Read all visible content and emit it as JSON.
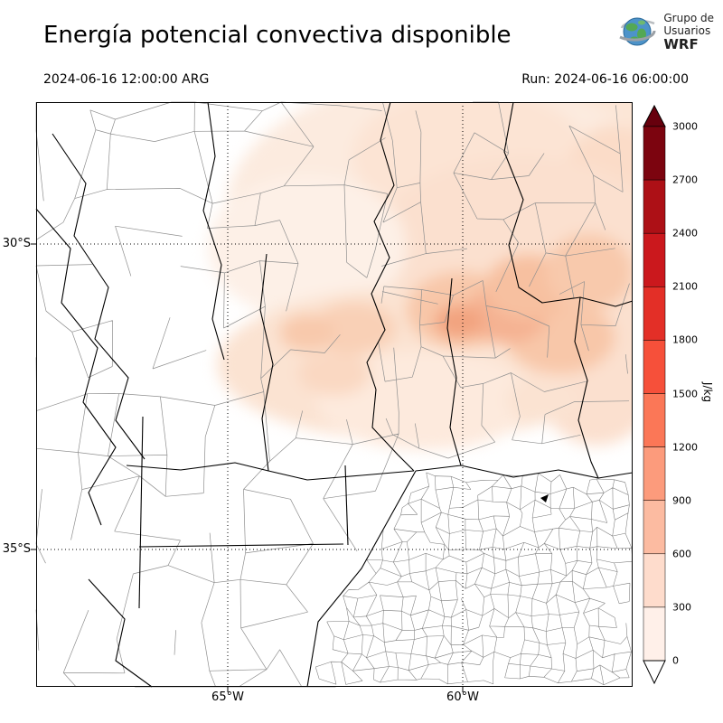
{
  "header": {
    "title": "Energía potencial convectiva disponible",
    "logo": {
      "line1": "Grupo de",
      "line2": "Usuarios",
      "line3": "WRF"
    }
  },
  "subheader": {
    "valid_time": "2024-06-16 12:00:00 ARG",
    "run_label": "Run: 2024-06-16 06:00:00"
  },
  "map": {
    "lat_ticks": [
      "30°S",
      "35°S"
    ],
    "lon_ticks": [
      "65°W",
      "60°W"
    ]
  },
  "colorbar": {
    "unit": "J/kg",
    "ticks": [
      "3000",
      "2700",
      "2400",
      "2100",
      "1800",
      "1500",
      "1200",
      "900",
      "600",
      "300",
      "0"
    ],
    "colors": [
      "#7c040f",
      "#ad1016",
      "#cb181d",
      "#e32f27",
      "#f6503a",
      "#fb7757",
      "#fc9b7c",
      "#fcbba1",
      "#fedccc",
      "#fff0e9"
    ],
    "above_color": "#67000d",
    "below_color": "#ffffff"
  }
}
